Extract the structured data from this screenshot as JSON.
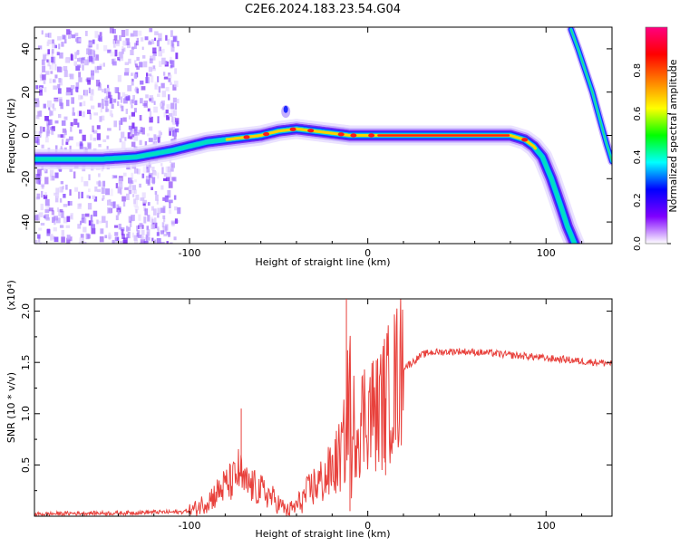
{
  "title": "C2E6.2024.183.23.54.G04",
  "chart_data": [
    {
      "type": "heatmap",
      "xlabel": "Height of straight line (km)",
      "ylabel": "Frequency (Hz)",
      "xlim": [
        -187,
        137
      ],
      "ylim": [
        -50,
        50
      ],
      "x_ticks": [
        -100,
        0,
        100
      ],
      "y_ticks": [
        -40,
        -20,
        0,
        20,
        40
      ],
      "colorbar": {
        "label": "Normalized spectral amplitude",
        "range": [
          0,
          1
        ],
        "ticks": [
          "0.0",
          "0.2",
          "0.4",
          "0.6",
          "0.8"
        ],
        "colormap": [
          "#ffffff",
          "#8000ff",
          "#0000ff",
          "#00ffff",
          "#00ff00",
          "#ffff00",
          "#ff8000",
          "#ff0000",
          "#ff0080"
        ]
      },
      "ridge": {
        "x": [
          -187,
          -170,
          -150,
          -130,
          -110,
          -100,
          -90,
          -80,
          -70,
          -60,
          -50,
          -40,
          -30,
          -20,
          -10,
          0,
          20,
          40,
          60,
          80,
          88,
          93,
          98,
          103,
          108,
          112,
          116
        ],
        "y": [
          -11,
          -11,
          -11,
          -10,
          -7,
          -5,
          -3,
          -2,
          -1,
          0,
          2,
          3,
          2,
          1,
          0,
          0,
          0,
          0,
          0,
          0,
          -2,
          -5,
          -10,
          -20,
          -32,
          -42,
          -50
        ]
      },
      "image_track": {
        "x": [
          114,
          118,
          122,
          126,
          130,
          134,
          137
        ],
        "y": [
          49,
          40,
          30,
          20,
          8,
          -4,
          -12
        ]
      }
    },
    {
      "type": "line",
      "xlabel": "Height of straight line (km)",
      "ylabel": "SNR (10 * v/v)",
      "multiplier": "(x10⁴)",
      "xlim": [
        -187,
        137
      ],
      "ylim": [
        0,
        2.12
      ],
      "x_ticks": [
        -100,
        0,
        100
      ],
      "y_ticks": [
        0.5,
        1.0,
        1.5,
        2.0
      ],
      "color": "#e8413c",
      "x": [
        -187,
        -160,
        -140,
        -120,
        -105,
        -97,
        -90,
        -85,
        -80,
        -75,
        -72,
        -70,
        -66,
        -60,
        -55,
        -50,
        -45,
        -40,
        -35,
        -30,
        -25,
        -20,
        -15,
        -12,
        -10,
        -9,
        -8,
        -5,
        0,
        5,
        10,
        15,
        20,
        25,
        30,
        35,
        40,
        50,
        60,
        70,
        80,
        90,
        100,
        110,
        120,
        130,
        137
      ],
      "y": [
        0.02,
        0.03,
        0.03,
        0.04,
        0.04,
        0.07,
        0.15,
        0.22,
        0.3,
        0.35,
        0.45,
        0.32,
        0.3,
        0.25,
        0.2,
        0.12,
        0.05,
        0.1,
        0.2,
        0.3,
        0.35,
        0.45,
        0.6,
        0.8,
        1.5,
        0.2,
        0.9,
        0.9,
        1.05,
        1.0,
        1.15,
        1.3,
        1.45,
        1.5,
        1.57,
        1.6,
        1.6,
        1.61,
        1.6,
        1.59,
        1.57,
        1.56,
        1.54,
        1.53,
        1.51,
        1.5,
        1.49
      ],
      "spikes": [
        {
          "x": -71,
          "y": 1.05
        },
        {
          "x": -12,
          "y": 2.12
        },
        {
          "x": -10,
          "y": 0.05
        },
        {
          "x": 10,
          "y": 0.4
        }
      ]
    }
  ]
}
